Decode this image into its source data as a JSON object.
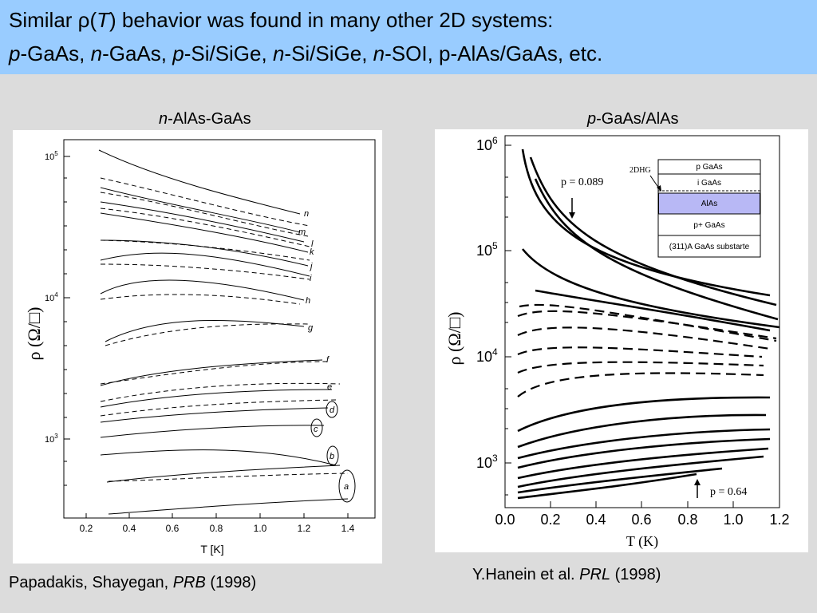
{
  "header": {
    "line1": {
      "a": "Similar ",
      "rho": "ρ",
      "b": "(",
      "T": "T",
      "c": ") behavior was found in many other 2D systems:"
    },
    "line2": {
      "p1": "p",
      "t1": "-GaAs, ",
      "n1": "n",
      "t2": "-GaAs, ",
      "p2": "p",
      "t3": "-Si/SiGe, ",
      "n2": "n",
      "t4": "-Si/SiGe, ",
      "n3": "n",
      "t5": "-SOI, p-AlAs/GaAs, etc."
    }
  },
  "left": {
    "title_it": "n",
    "title_rest": "-AlAs-GaAs",
    "ylabel": "ρ (Ω/□)",
    "xlabel": "T [K]",
    "xticks": [
      "0.2",
      "0.4",
      "0.6",
      "0.8",
      "1.0",
      "1.2",
      "1.4"
    ],
    "yticks": [
      {
        "base": "10",
        "exp": "5"
      },
      {
        "base": "10",
        "exp": "4"
      },
      {
        "base": "10",
        "exp": "3"
      }
    ],
    "curve_labels": [
      "n",
      "m",
      "l",
      "k",
      "j",
      "i",
      "h",
      "g",
      "f",
      "e",
      "d",
      "c",
      "b",
      "a"
    ],
    "caption": {
      "authors": "Papadakis, Shayegan, ",
      "journal": "PRB",
      "year": " (1998)"
    }
  },
  "right": {
    "title_it": "p",
    "title_rest": "-GaAs/AlAs",
    "ylabel": "ρ (Ω/□)",
    "xlabel": "T (K)",
    "xticks": [
      "0.0",
      "0.2",
      "0.4",
      "0.6",
      "0.8",
      "1.0",
      "1.2"
    ],
    "yticks": [
      {
        "base": "10",
        "exp": "6"
      },
      {
        "base": "10",
        "exp": "5"
      },
      {
        "base": "10",
        "exp": "4"
      },
      {
        "base": "10",
        "exp": "3"
      }
    ],
    "annotation_top": "p = 0.089",
    "annotation_bottom": "p = 0.64",
    "inset": {
      "label": "2DHG",
      "layers": [
        "p GaAs",
        "i GaAs",
        "AlAs",
        "p+ GaAs",
        "(311)A GaAs substarte"
      ]
    },
    "caption": {
      "authors": "Y.Hanein et al. ",
      "journal": "PRL",
      "year": " (1998)"
    }
  }
}
